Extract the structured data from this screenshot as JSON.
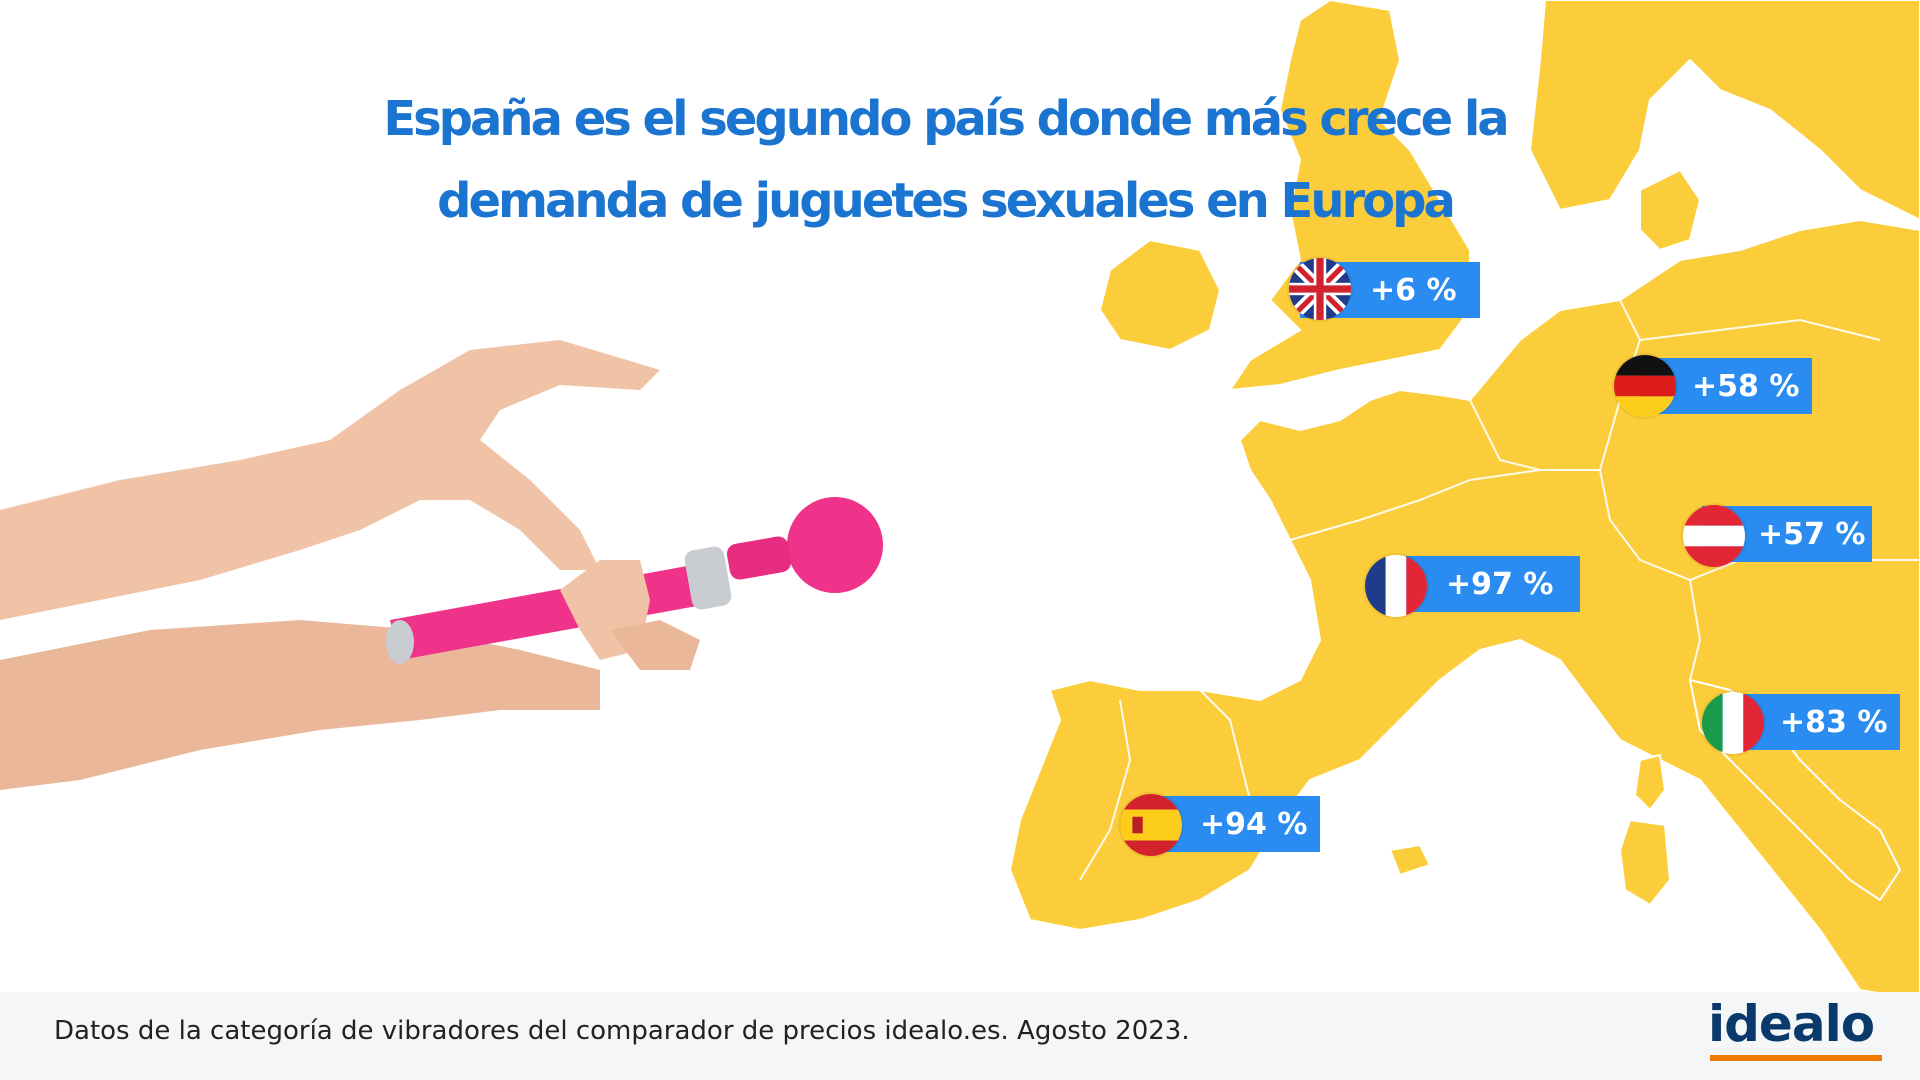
{
  "title": {
    "line1": "España es el segundo país donde más crece la",
    "line2": "demanda de juguetes sexuales en Europa"
  },
  "map_labels": [
    {
      "country": "Reino Unido",
      "flag": "uk-flag",
      "value": "+6 %"
    },
    {
      "country": "Alemania",
      "flag": "germany-flag",
      "value": "+58 %"
    },
    {
      "country": "Austria",
      "flag": "austria-flag",
      "value": "+57 %"
    },
    {
      "country": "Francia",
      "flag": "france-flag",
      "value": "+97 %"
    },
    {
      "country": "Italia",
      "flag": "italy-flag",
      "value": "+83 %"
    },
    {
      "country": "España",
      "flag": "spain-flag",
      "value": "+94 %"
    }
  ],
  "footer": {
    "note": "Datos de la categoría de vibradores del comparador de precios idealo.es. Agosto 2023.",
    "logo": "idealo"
  },
  "colors": {
    "map_land": "#fccd3a",
    "title": "#1b75d0",
    "badge": "#2a8cf0",
    "product": "#f0338a",
    "logo_text": "#0a3a6b",
    "logo_accent": "#f07d00"
  }
}
